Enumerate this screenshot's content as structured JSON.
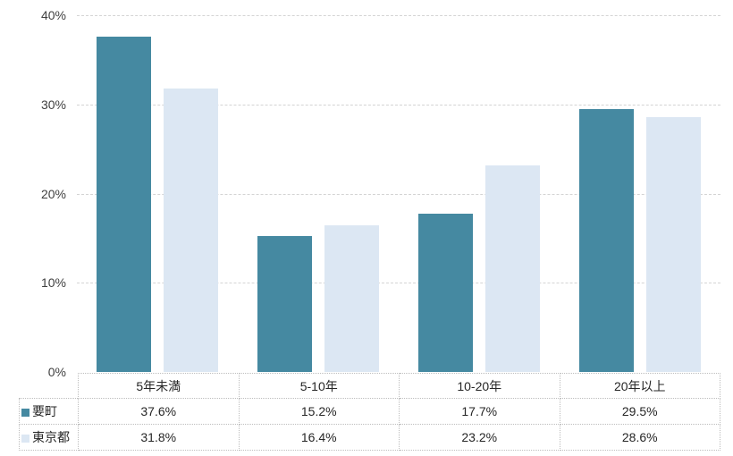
{
  "chart_data": {
    "type": "bar",
    "categories": [
      "5年未満",
      "5-10年",
      "10-20年",
      "20年以上"
    ],
    "series": [
      {
        "name": "要町",
        "color": "#4589A1",
        "values": [
          37.6,
          15.2,
          17.7,
          29.5
        ]
      },
      {
        "name": "東京都",
        "color": "#DCE7F3",
        "values": [
          31.8,
          16.4,
          23.2,
          28.6
        ]
      }
    ],
    "value_suffix": "%",
    "ylim": [
      0,
      40
    ],
    "yticks": [
      {
        "value": 40,
        "label": "40%"
      },
      {
        "value": 30,
        "label": "30%"
      },
      {
        "value": 20,
        "label": "20%"
      },
      {
        "value": 10,
        "label": "10%"
      },
      {
        "value": 0,
        "label": "0%"
      }
    ],
    "grid": "horizontal-dashed",
    "legend_position": "table-row-headers",
    "title": "",
    "xlabel": "",
    "ylabel": ""
  },
  "colors": {
    "background": "#FFFFFF",
    "gridline": "#D4D4D4",
    "table_border": "#BDBDBD",
    "axis_text": "#404040",
    "table_text": "#262626"
  }
}
